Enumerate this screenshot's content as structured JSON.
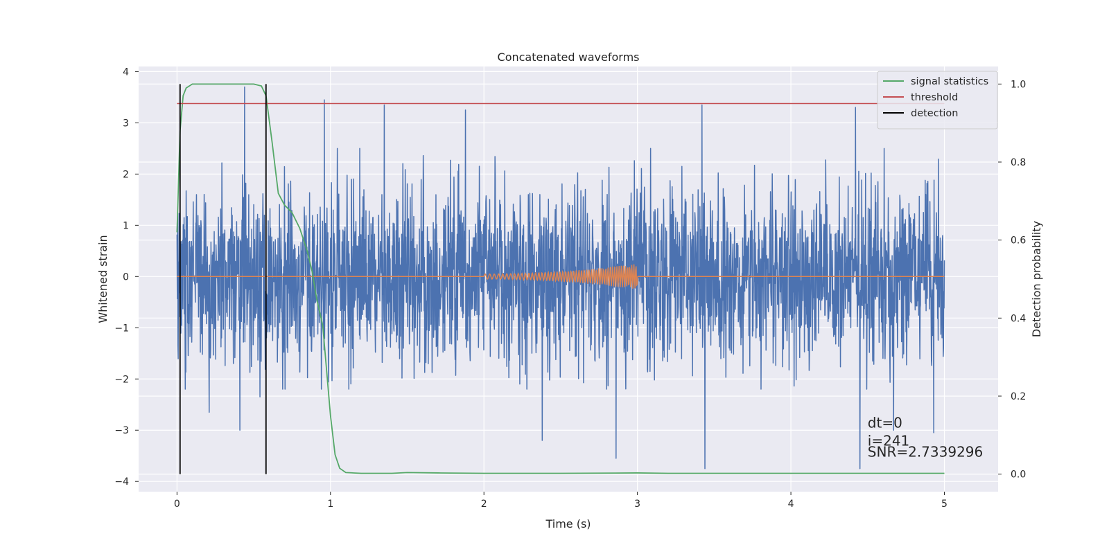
{
  "chart_data": {
    "type": "line",
    "title": "Concatenated waveforms",
    "xlabel": "Time (s)",
    "ylabel": "Whitened strain",
    "y2label": "Detection probability",
    "xlim": [
      -0.25,
      5.35
    ],
    "ylim": [
      -4.2,
      4.1
    ],
    "y2lim": [
      -0.045,
      1.045
    ],
    "xticks": [
      0,
      1,
      2,
      3,
      4,
      5
    ],
    "yticks": [
      -4,
      -3,
      -2,
      -1,
      0,
      1,
      2,
      3,
      4
    ],
    "y2ticks": [
      0.0,
      0.2,
      0.4,
      0.6,
      0.8,
      1.0
    ],
    "y2ticklabels": [
      "0.0",
      "0.2",
      "0.4",
      "0.6",
      "0.8",
      "1.0"
    ],
    "grid": true,
    "legend_position": "top-right",
    "series": [
      {
        "name": "",
        "axis": "left",
        "color": "#4c72b0",
        "kind": "noise",
        "x_range": [
          0,
          5
        ],
        "typical_envelope": [
          -2.2,
          2.5
        ],
        "spikes": [
          {
            "x": 0.44,
            "y": 3.7
          },
          {
            "x": 0.96,
            "y": 3.45
          },
          {
            "x": 1.35,
            "y": 3.35
          },
          {
            "x": 1.88,
            "y": 3.25
          },
          {
            "x": 3.42,
            "y": 3.35
          },
          {
            "x": 4.42,
            "y": 3.3
          },
          {
            "x": 0.21,
            "y": -2.65
          },
          {
            "x": 0.41,
            "y": -3.0
          },
          {
            "x": 0.54,
            "y": -2.35
          },
          {
            "x": 2.38,
            "y": -3.2
          },
          {
            "x": 2.86,
            "y": -3.55
          },
          {
            "x": 3.44,
            "y": -3.75
          },
          {
            "x": 4.45,
            "y": -3.75
          },
          {
            "x": 4.67,
            "y": -3.0
          },
          {
            "x": 4.93,
            "y": -3.05
          }
        ]
      },
      {
        "name": "",
        "axis": "left",
        "color": "#dd8452",
        "kind": "chirp",
        "x_range": [
          0,
          5
        ],
        "chirp_start": 2.0,
        "chirp_end": 3.0,
        "amplitude_start": 0.05,
        "amplitude_end": 0.25
      },
      {
        "name": "signal statistics",
        "axis": "right",
        "color": "#55a868",
        "x": [
          0,
          0.02,
          0.04,
          0.06,
          0.1,
          0.2,
          0.4,
          0.5,
          0.55,
          0.58,
          0.62,
          0.66,
          0.7,
          0.75,
          0.8,
          0.85,
          0.88,
          0.91,
          0.95,
          1.0,
          1.03,
          1.06,
          1.1,
          1.2,
          1.4,
          1.5,
          1.7,
          2.0,
          2.5,
          3.0,
          3.2,
          3.5,
          4.0,
          4.5,
          5.0
        ],
        "y": [
          0.62,
          0.88,
          0.97,
          0.99,
          1.0,
          1.0,
          1.0,
          1.0,
          0.995,
          0.97,
          0.85,
          0.72,
          0.69,
          0.67,
          0.63,
          0.57,
          0.52,
          0.45,
          0.38,
          0.15,
          0.05,
          0.015,
          0.004,
          0.002,
          0.002,
          0.004,
          0.003,
          0.002,
          0.002,
          0.003,
          0.002,
          0.002,
          0.002,
          0.002,
          0.002
        ]
      },
      {
        "name": "threshold",
        "axis": "right",
        "color": "#c44e52",
        "x": [
          0,
          5
        ],
        "y": [
          0.95,
          0.95
        ]
      },
      {
        "name": "detection",
        "axis": "right",
        "color": "#000000",
        "vlines": [
          0.02,
          0.58
        ],
        "y_range": [
          0,
          1
        ]
      }
    ],
    "annotations": [
      {
        "text": "dt=0",
        "x": 4.5,
        "y": -2.95
      },
      {
        "text": "i=241",
        "x": 4.5,
        "y": -3.3
      },
      {
        "text": "SNR=2.7339296",
        "x": 4.5,
        "y": -3.52
      }
    ]
  }
}
